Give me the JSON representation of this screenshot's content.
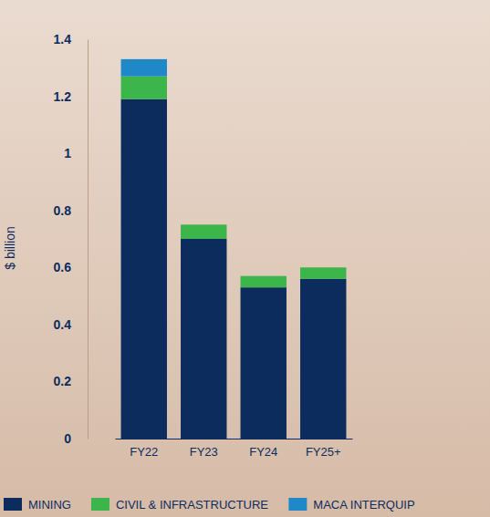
{
  "chart_data": {
    "type": "bar",
    "stacked": true,
    "y_label": "$ billion",
    "categories": [
      "FY22",
      "FY23",
      "FY24",
      "FY25+"
    ],
    "series": [
      {
        "name": "MINING",
        "color": "#0d2c5e",
        "values": [
          1.19,
          0.7,
          0.53,
          0.56
        ]
      },
      {
        "name": "CIVIL & INFRASTRUCTURE",
        "color": "#3cb54a",
        "values": [
          0.08,
          0.05,
          0.04,
          0.04
        ]
      },
      {
        "name": "MACA INTERQUIP",
        "color": "#1e88c9",
        "values": [
          0.06,
          0,
          0,
          0
        ]
      }
    ],
    "ylim": [
      0,
      1.4
    ],
    "yticks": [
      0,
      0.2,
      0.4,
      0.6,
      0.8,
      1,
      1.2,
      1.4
    ],
    "grid": false,
    "legend": "bottom"
  }
}
